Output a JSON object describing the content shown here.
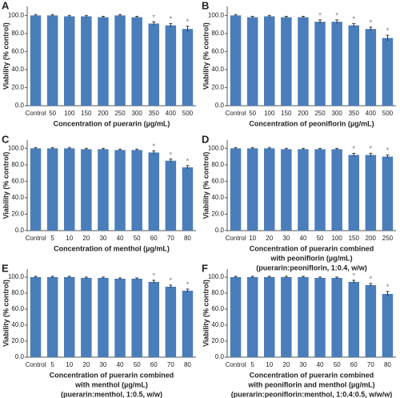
{
  "chart_data": [
    {
      "type": "bar",
      "panel": "A",
      "ylabel": "Viability (% control)",
      "xlabel": [
        "Concentration of puerarin (µg/mL)"
      ],
      "categories": [
        "Control",
        "50",
        "100",
        "150",
        "200",
        "250",
        "300",
        "350",
        "400",
        "500"
      ],
      "values": [
        100,
        100,
        99,
        99,
        98,
        100,
        98,
        91,
        89,
        85
      ],
      "errors": [
        1,
        1,
        1,
        1,
        1,
        1,
        1,
        2,
        2,
        3
      ],
      "markers": [
        null,
        null,
        null,
        null,
        null,
        null,
        null,
        "*",
        "*",
        "*"
      ],
      "color": "#4a7ebb",
      "ylim": [
        0,
        110
      ],
      "yticks": [
        {
          "value": 0,
          "label": "0.0"
        },
        {
          "value": 20,
          "label": "20.0"
        },
        {
          "value": 40,
          "label": "40.0"
        },
        {
          "value": 60,
          "label": "60.0"
        },
        {
          "value": 80,
          "label": "80.0"
        },
        {
          "value": 100,
          "label": "100.0"
        }
      ]
    },
    {
      "type": "bar",
      "panel": "B",
      "ylabel": "Viability (% control)",
      "xlabel": [
        "Concentration of peoniflorin (µg/mL)"
      ],
      "categories": [
        "Control",
        "50",
        "100",
        "150",
        "200",
        "250",
        "300",
        "350",
        "400",
        "500"
      ],
      "values": [
        100,
        98,
        99,
        98,
        98,
        93,
        93,
        89,
        85,
        75
      ],
      "errors": [
        1,
        1,
        1,
        1,
        1,
        2,
        2,
        2,
        2,
        3
      ],
      "markers": [
        null,
        null,
        null,
        null,
        null,
        "*",
        "*",
        "*",
        "*",
        "*"
      ],
      "color": "#4a7ebb",
      "ylim": [
        0,
        110
      ],
      "yticks": [
        {
          "value": 0,
          "label": "0.0"
        },
        {
          "value": 20,
          "label": "20.0"
        },
        {
          "value": 40,
          "label": "40.0"
        },
        {
          "value": 60,
          "label": "60.0"
        },
        {
          "value": 80,
          "label": "80.0"
        },
        {
          "value": 100,
          "label": "100.0"
        }
      ]
    },
    {
      "type": "bar",
      "panel": "C",
      "ylabel": "Viability (% control)",
      "xlabel": [
        "Concentration of menthol (µg/mL)"
      ],
      "categories": [
        "Control",
        "5",
        "10",
        "20",
        "30",
        "40",
        "50",
        "60",
        "70",
        "80"
      ],
      "values": [
        100,
        100,
        100,
        99,
        99,
        98,
        98,
        95,
        85,
        77
      ],
      "errors": [
        1,
        1,
        1,
        1,
        1,
        1,
        1,
        2,
        2,
        2
      ],
      "markers": [
        null,
        null,
        null,
        null,
        null,
        null,
        null,
        "*",
        "*",
        "*"
      ],
      "color": "#4a7ebb",
      "ylim": [
        0,
        110
      ],
      "yticks": [
        {
          "value": 0,
          "label": "0.0"
        },
        {
          "value": 20,
          "label": "20.0"
        },
        {
          "value": 40,
          "label": "40.0"
        },
        {
          "value": 60,
          "label": "60.0"
        },
        {
          "value": 80,
          "label": "80.0"
        },
        {
          "value": 100,
          "label": "100.0"
        }
      ]
    },
    {
      "type": "bar",
      "panel": "D",
      "ylabel": "Viability (% control)",
      "xlabel": [
        "Concentration of puerarin combined",
        "with peoniflorin (µg/mL)",
        "(puerarin:peoniflorin, 1:0.4, w/w)"
      ],
      "categories": [
        "Control",
        "10",
        "20",
        "30",
        "40",
        "50",
        "100",
        "150",
        "200",
        "250"
      ],
      "values": [
        100,
        100,
        100,
        99,
        99,
        99,
        99,
        92,
        92,
        90
      ],
      "errors": [
        1,
        1,
        1,
        1,
        1,
        1,
        1,
        2,
        2,
        2
      ],
      "markers": [
        null,
        null,
        null,
        null,
        null,
        null,
        null,
        "*",
        "*",
        "*"
      ],
      "color": "#4a7ebb",
      "ylim": [
        0,
        110
      ],
      "yticks": [
        {
          "value": 0,
          "label": "0.0"
        },
        {
          "value": 20,
          "label": "20.0"
        },
        {
          "value": 40,
          "label": "40.0"
        },
        {
          "value": 60,
          "label": "60.0"
        },
        {
          "value": 80,
          "label": "80.0"
        },
        {
          "value": 100,
          "label": "100.0"
        }
      ]
    },
    {
      "type": "bar",
      "panel": "E",
      "ylabel": "Viability (% control)",
      "xlabel": [
        "Concentration of puerarin combined",
        "with menthol (µg/mL)",
        "(puerarin:menthol, 1:0.5, w/w)"
      ],
      "categories": [
        "Control",
        "5",
        "10",
        "20",
        "30",
        "40",
        "50",
        "60",
        "70",
        "80"
      ],
      "values": [
        100,
        100,
        100,
        99,
        99,
        98,
        98,
        94,
        88,
        83
      ],
      "errors": [
        1,
        1,
        1,
        1,
        1,
        1,
        1,
        2,
        2,
        2
      ],
      "markers": [
        null,
        null,
        null,
        null,
        null,
        null,
        null,
        "*",
        "*",
        "*"
      ],
      "color": "#4a7ebb",
      "ylim": [
        0,
        110
      ],
      "yticks": [
        {
          "value": 0,
          "label": "0.0"
        },
        {
          "value": 20,
          "label": "20.0"
        },
        {
          "value": 40,
          "label": "40.0"
        },
        {
          "value": 60,
          "label": "60.0"
        },
        {
          "value": 80,
          "label": "80.0"
        },
        {
          "value": 100,
          "label": "100.0"
        }
      ]
    },
    {
      "type": "bar",
      "panel": "F",
      "ylabel": "Viability (% control)",
      "xlabel": [
        "Concentration of puerarin combined",
        "with peoniflorin and menthol (µg/mL)",
        "(puerarin:peoniflorin:menthol, 1:0.4:0.5, w/w/w)"
      ],
      "categories": [
        "Control",
        "5",
        "10",
        "20",
        "30",
        "40",
        "50",
        "60",
        "70",
        "80"
      ],
      "values": [
        100,
        100,
        100,
        100,
        100,
        99,
        99,
        94,
        90,
        79
      ],
      "errors": [
        1,
        1,
        1,
        1,
        1,
        1,
        1,
        2,
        2,
        3
      ],
      "markers": [
        null,
        null,
        null,
        null,
        null,
        null,
        null,
        "*",
        "*",
        "*"
      ],
      "color": "#4a7ebb",
      "ylim": [
        0,
        110
      ],
      "yticks": [
        {
          "value": 0,
          "label": "0.0"
        },
        {
          "value": 20,
          "label": "20.0"
        },
        {
          "value": 40,
          "label": "40.0"
        },
        {
          "value": 60,
          "label": "60.0"
        },
        {
          "value": 80,
          "label": "80.0"
        },
        {
          "value": 100,
          "label": "100.0"
        }
      ]
    }
  ]
}
